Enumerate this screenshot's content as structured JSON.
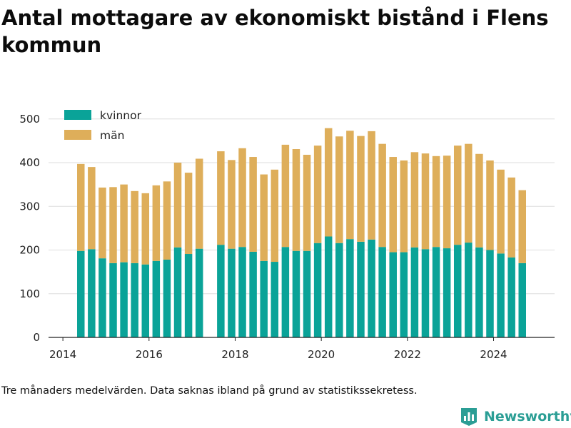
{
  "title": "Antal mottagare av ekonomiskt bistånd i Flens kommun",
  "caption": "Tre månaders medelvärden. Data saknas ibland på grund av statistikssekretess.",
  "brand": {
    "name": "Newsworthy",
    "icon": "bar-chart-logo-icon",
    "color": "#2b9e95"
  },
  "colors": {
    "kvinnor": "#0aa398",
    "man": "#deae5a",
    "grid": "#dddddd",
    "axis": "#222222",
    "text": "#222222"
  },
  "chart_data": {
    "type": "bar",
    "stacked": true,
    "x_ticks": [
      "2014",
      "2016",
      "2018",
      "2020",
      "2022",
      "2024"
    ],
    "y_ticks": [
      0,
      100,
      200,
      300,
      400,
      500
    ],
    "ylim": [
      0,
      520
    ],
    "xlim": [
      "2013-09",
      "2025-06"
    ],
    "grid": true,
    "legend_position": "top-left",
    "x": [
      "2014-06",
      "2014-09",
      "2014-12",
      "2015-03",
      "2015-06",
      "2015-09",
      "2015-12",
      "2016-03",
      "2016-06",
      "2016-09",
      "2016-12",
      "2017-03",
      "2017-09",
      "2017-12",
      "2018-03",
      "2018-06",
      "2018-09",
      "2018-12",
      "2019-03",
      "2019-06",
      "2019-09",
      "2019-12",
      "2020-03",
      "2020-06",
      "2020-09",
      "2020-12",
      "2021-03",
      "2021-06",
      "2021-09",
      "2021-12",
      "2022-03",
      "2022-06",
      "2022-09",
      "2022-12",
      "2023-03",
      "2023-06",
      "2023-09",
      "2023-12",
      "2024-03",
      "2024-06",
      "2024-09"
    ],
    "series": [
      {
        "name": "kvinnor",
        "values": [
          198,
          202,
          181,
          170,
          172,
          170,
          167,
          175,
          178,
          206,
          191,
          203,
          212,
          203,
          207,
          196,
          175,
          173,
          207,
          198,
          198,
          216,
          231,
          216,
          225,
          219,
          224,
          207,
          195,
          195,
          206,
          202,
          207,
          204,
          212,
          217,
          206,
          200,
          192,
          183,
          170
        ]
      },
      {
        "name": "män",
        "values": [
          199,
          188,
          162,
          174,
          178,
          165,
          163,
          173,
          179,
          194,
          186,
          206,
          214,
          203,
          226,
          217,
          198,
          211,
          234,
          233,
          220,
          223,
          248,
          244,
          248,
          242,
          248,
          236,
          218,
          210,
          218,
          219,
          208,
          212,
          227,
          226,
          214,
          205,
          192,
          183,
          167
        ]
      }
    ]
  }
}
